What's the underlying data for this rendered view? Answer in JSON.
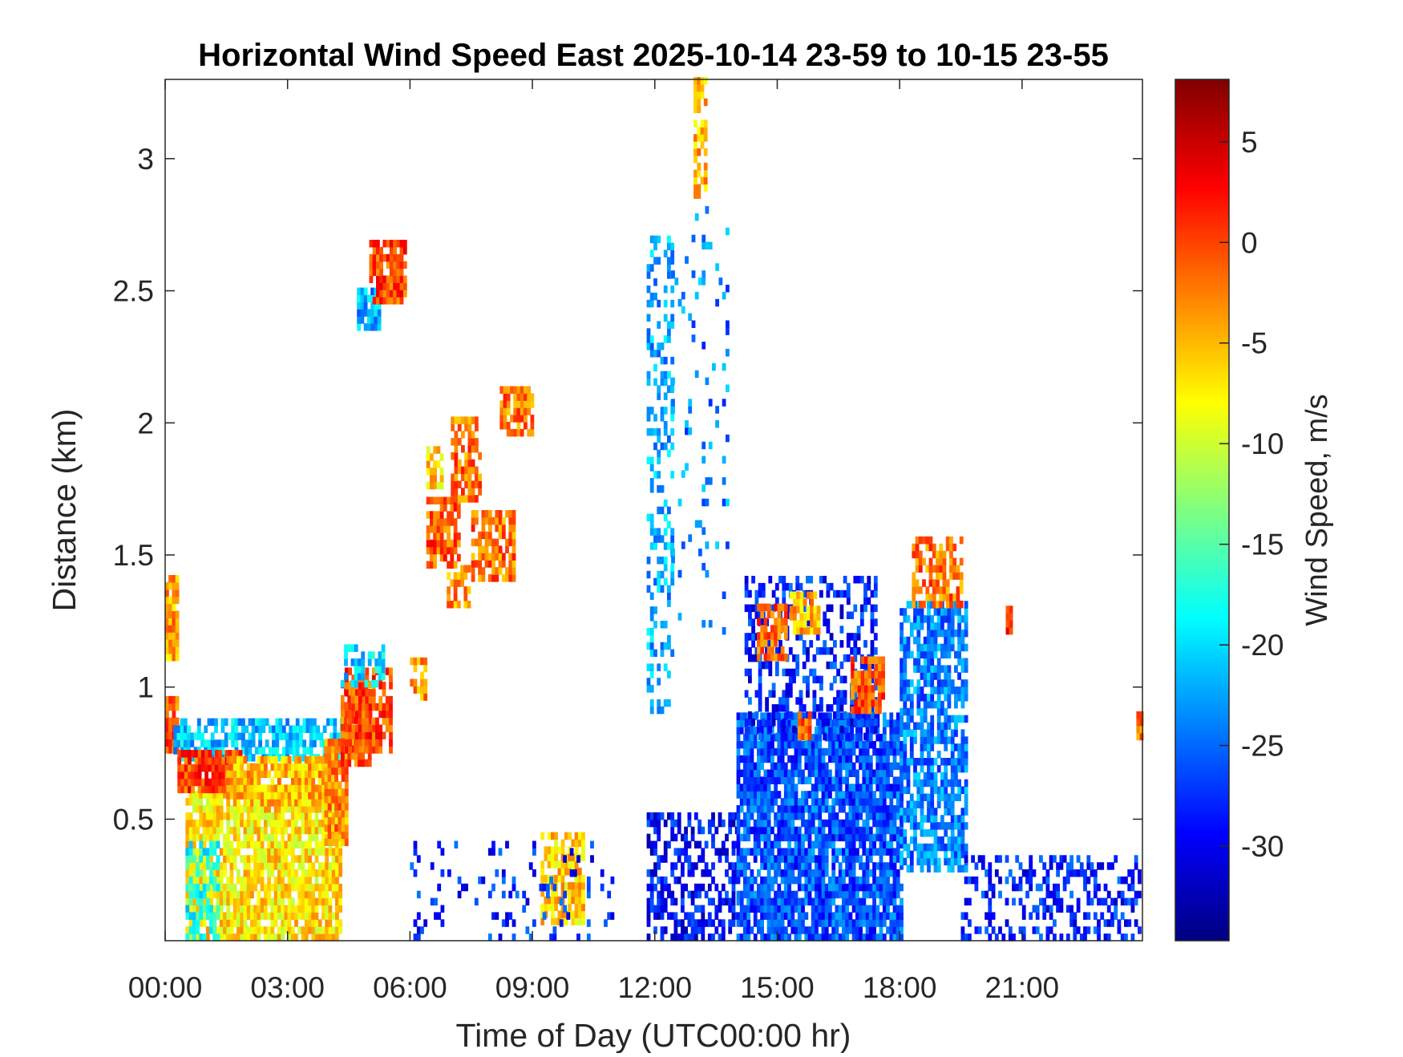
{
  "chart_data": {
    "type": "heatmap",
    "title": "Horizontal Wind Speed East 2025-10-14 23-59 to 10-15 23-55",
    "xlabel": "Time of Day (UTC00:00 hr)",
    "ylabel": "Distance (km)",
    "colorbar_label": "Wind Speed, m/s",
    "colormap": "jet",
    "xlim": [
      0,
      23.95
    ],
    "ylim": [
      0.04,
      3.3
    ],
    "clim": [
      -34.7,
      8.1
    ],
    "x_ticks": [
      0,
      3,
      6,
      9,
      12,
      15,
      18,
      21
    ],
    "x_tick_labels": [
      "00:00",
      "03:00",
      "06:00",
      "09:00",
      "12:00",
      "15:00",
      "18:00",
      "21:00"
    ],
    "y_ticks": [
      0.5,
      1,
      1.5,
      2,
      2.5,
      3
    ],
    "y_tick_labels": [
      "0.5",
      "1",
      "1.5",
      "2",
      "2.5",
      "3"
    ],
    "colorbar_ticks": [
      5,
      0,
      -5,
      -10,
      -15,
      -20,
      -25,
      -30
    ],
    "colorbar_tick_labels": [
      "5",
      "0",
      "-5",
      "-10",
      "-15",
      "-20",
      "-25",
      "-30"
    ],
    "time_step_hr": 0.0833,
    "range_step_km": 0.027,
    "regions": [
      {
        "t": [
          0,
          0.3
        ],
        "z": [
          0.75,
          0.95
        ],
        "v": -1,
        "density": 0.9
      },
      {
        "t": [
          0,
          0.3
        ],
        "z": [
          1.1,
          1.4
        ],
        "v": -4,
        "density": 0.9
      },
      {
        "t": [
          0.2,
          4.3
        ],
        "z": [
          0.72,
          0.86
        ],
        "v": -21,
        "density": 0.7
      },
      {
        "t": [
          0.5,
          4.3
        ],
        "z": [
          0.04,
          0.6
        ],
        "v": -7,
        "density": 0.85
      },
      {
        "t": [
          0.5,
          1.3
        ],
        "z": [
          0.04,
          0.4
        ],
        "v": -18,
        "density": 0.6
      },
      {
        "t": [
          0.3,
          1.8
        ],
        "z": [
          0.6,
          0.75
        ],
        "v": 0,
        "density": 0.95
      },
      {
        "t": [
          1.5,
          4.0
        ],
        "z": [
          0.55,
          0.72
        ],
        "v": -5,
        "density": 0.9
      },
      {
        "t": [
          3.9,
          4.4
        ],
        "z": [
          0.4,
          0.8
        ],
        "v": -3,
        "density": 0.9
      },
      {
        "t": [
          4.3,
          5.0
        ],
        "z": [
          0.7,
          1.0
        ],
        "v": -1,
        "density": 0.9
      },
      {
        "t": [
          4.4,
          5.5
        ],
        "z": [
          0.75,
          1.05
        ],
        "v": 0,
        "density": 0.7
      },
      {
        "t": [
          4.3,
          5.3
        ],
        "z": [
          1.0,
          1.15
        ],
        "v": -20,
        "density": 0.5
      },
      {
        "t": [
          4.7,
          5.2
        ],
        "z": [
          2.35,
          2.5
        ],
        "v": -22,
        "density": 0.8
      },
      {
        "t": [
          5.0,
          5.9
        ],
        "z": [
          2.45,
          2.68
        ],
        "v": 0,
        "density": 0.8
      },
      {
        "t": [
          6.0,
          6.4
        ],
        "z": [
          0.95,
          1.1
        ],
        "v": -3,
        "density": 0.6
      },
      {
        "t": [
          6.4,
          7.2
        ],
        "z": [
          1.45,
          1.7
        ],
        "v": -1,
        "density": 0.8
      },
      {
        "t": [
          6.4,
          6.8
        ],
        "z": [
          1.75,
          1.9
        ],
        "v": -6,
        "density": 0.7
      },
      {
        "t": [
          6.9,
          7.4
        ],
        "z": [
          1.3,
          1.45
        ],
        "v": -3,
        "density": 0.6
      },
      {
        "t": [
          7.0,
          7.7
        ],
        "z": [
          1.7,
          2.0
        ],
        "v": -2,
        "density": 0.7
      },
      {
        "t": [
          7.5,
          8.5
        ],
        "z": [
          1.4,
          1.65
        ],
        "v": -2,
        "density": 0.7
      },
      {
        "t": [
          8.2,
          9.0
        ],
        "z": [
          1.95,
          2.12
        ],
        "v": -2,
        "density": 0.8
      },
      {
        "t": [
          9.2,
          10.2
        ],
        "z": [
          0.1,
          0.45
        ],
        "v": -6,
        "density": 0.7
      },
      {
        "t": [
          6.0,
          11.0
        ],
        "z": [
          0.04,
          0.4
        ],
        "v": -28,
        "density": 0.12
      },
      {
        "t": [
          11.8,
          12.4
        ],
        "z": [
          0.9,
          2.7
        ],
        "v": -22,
        "density": 0.3
      },
      {
        "t": [
          12.4,
          13.8
        ],
        "z": [
          1.2,
          2.8
        ],
        "v": -24,
        "density": 0.08
      },
      {
        "t": [
          12.95,
          13.2
        ],
        "z": [
          2.85,
          3.3
        ],
        "v": -5,
        "density": 0.6
      },
      {
        "t": [
          11.8,
          14.0
        ],
        "z": [
          0.04,
          0.5
        ],
        "v": -29,
        "density": 0.5
      },
      {
        "t": [
          14.0,
          18.0
        ],
        "z": [
          0.04,
          0.9
        ],
        "v": -26,
        "density": 0.85
      },
      {
        "t": [
          14.2,
          17.4
        ],
        "z": [
          0.8,
          1.4
        ],
        "v": -28,
        "density": 0.4
      },
      {
        "t": [
          14.5,
          15.2
        ],
        "z": [
          1.1,
          1.3
        ],
        "v": -1,
        "density": 0.8
      },
      {
        "t": [
          15.3,
          16.0
        ],
        "z": [
          1.2,
          1.35
        ],
        "v": -5,
        "density": 0.8
      },
      {
        "t": [
          16.8,
          17.6
        ],
        "z": [
          0.9,
          1.1
        ],
        "v": -1,
        "density": 0.8
      },
      {
        "t": [
          15.5,
          15.8
        ],
        "z": [
          0.8,
          0.9
        ],
        "v": -1,
        "density": 0.8
      },
      {
        "t": [
          18.0,
          19.6
        ],
        "z": [
          0.3,
          1.3
        ],
        "v": -24,
        "density": 0.7
      },
      {
        "t": [
          18.3,
          19.5
        ],
        "z": [
          1.3,
          1.55
        ],
        "v": -2,
        "density": 0.6
      },
      {
        "t": [
          19.5,
          23.9
        ],
        "z": [
          0.04,
          0.35
        ],
        "v": -28,
        "density": 0.35
      },
      {
        "t": [
          20.6,
          20.7
        ],
        "z": [
          1.2,
          1.3
        ],
        "v": 2,
        "density": 1.0
      },
      {
        "t": [
          23.8,
          23.95
        ],
        "z": [
          0.8,
          0.9
        ],
        "v": -3,
        "density": 1.0
      }
    ]
  }
}
